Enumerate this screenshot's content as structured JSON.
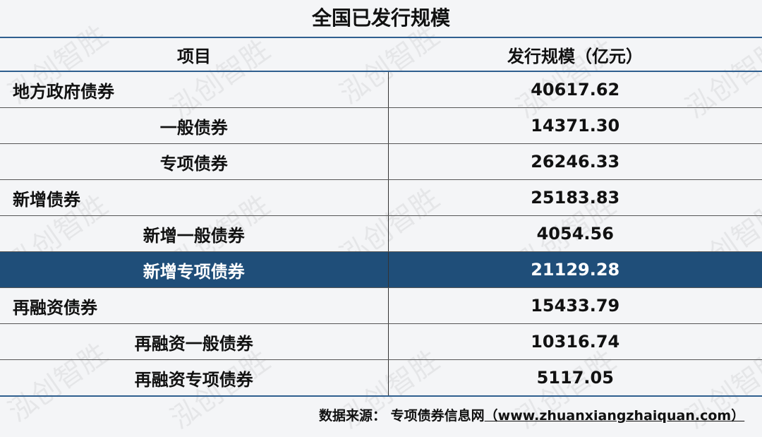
{
  "title": "全国已发行规模",
  "watermark": "泓创智胜",
  "highlight_color": "#1f4e79",
  "header": {
    "item": "项目",
    "value": "发行规模（亿元）"
  },
  "rows": [
    {
      "label": "地方政府债券",
      "value": "40617.62",
      "level": 1
    },
    {
      "label": "一般债券",
      "value": "14371.30",
      "level": 2
    },
    {
      "label": "专项债券",
      "value": "26246.33",
      "level": 2
    },
    {
      "label": "新增债券",
      "value": "25183.83",
      "level": 1
    },
    {
      "label": "新增一般债券",
      "value": "4054.56",
      "level": 2
    },
    {
      "label": "新增专项债券",
      "value": "21129.28",
      "level": 2,
      "highlighted": true
    },
    {
      "label": "再融资债券",
      "value": "15433.79",
      "level": 1
    },
    {
      "label": "再融资一般债券",
      "value": "10316.74",
      "level": 2
    },
    {
      "label": "再融资专项债券",
      "value": "5117.05",
      "level": 2
    }
  ],
  "source": {
    "label": "数据来源：",
    "name": "专项债券信息网",
    "url": "（www.zhuanxiangzhaiquan.com）"
  }
}
